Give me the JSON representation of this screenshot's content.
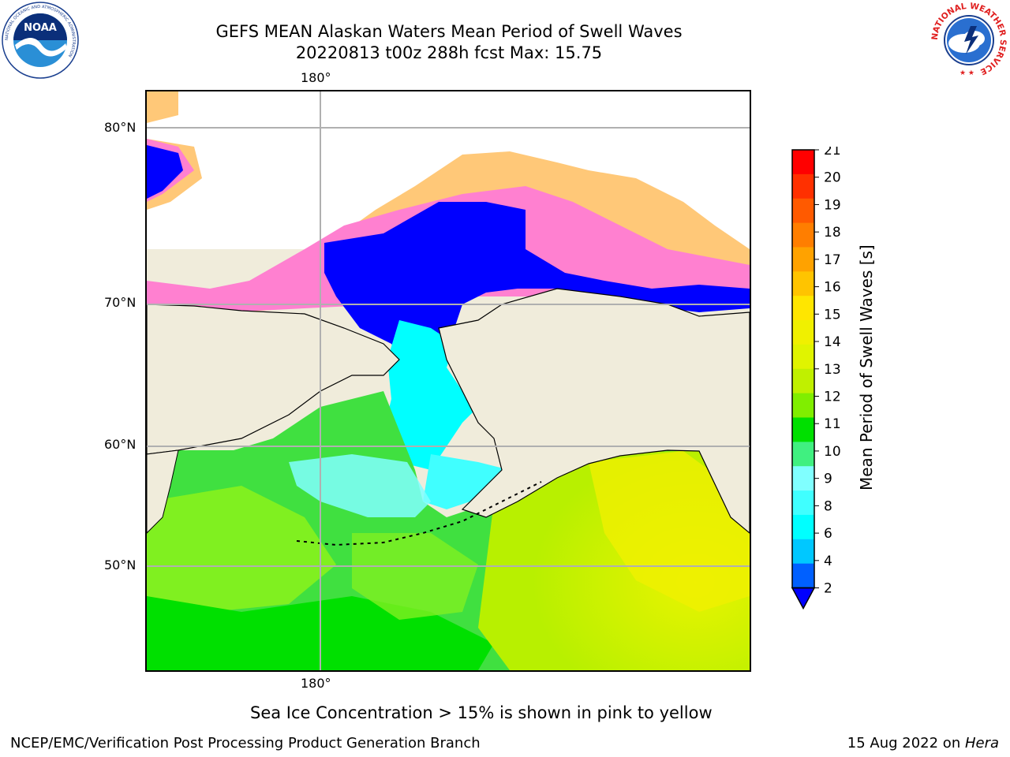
{
  "title": {
    "line1": "GEFS MEAN Alaskan Waters Mean Period of Swell Waves",
    "line2": "20220813 t00z 288h fcst   Max: 15.75"
  },
  "map": {
    "lat_labels": [
      "80°N",
      "70°N",
      "60°N",
      "50°N"
    ],
    "lon_label_top": "180°",
    "lon_label_bottom": "180°",
    "land_color": "#f0ecdb",
    "ice_colors": [
      "#ff00ff",
      "#ff80d0",
      "#ffb0b0",
      "#ffc878",
      "#ffe060"
    ],
    "ocean_colors": {
      "dark_green": "#00e000",
      "green": "#40e040",
      "light_green": "#80f020",
      "yellow_green": "#c0f000",
      "yellow": "#f0f000",
      "cyan": "#00ffff",
      "light_cyan": "#80ffff",
      "blue": "#0000ff",
      "mint": "#40f080"
    }
  },
  "colorbar": {
    "label": "Mean Period of Swell Waves [s]",
    "ticks": [
      "21",
      "20",
      "19",
      "18",
      "17",
      "16",
      "15",
      "14",
      "13",
      "12",
      "11",
      "10",
      "9",
      "8",
      "6",
      "4",
      "2"
    ],
    "colors": [
      "#ff0000",
      "#ff3000",
      "#ff5a00",
      "#ff7e00",
      "#ffa200",
      "#ffc400",
      "#ffe600",
      "#f0f000",
      "#e0f400",
      "#c0f000",
      "#80ee00",
      "#00e000",
      "#40f080",
      "#80ffff",
      "#40ffff",
      "#00ffff",
      "#00c8ff",
      "#0060ff"
    ],
    "extend_color": "#0000ff"
  },
  "caption": "Sea Ice Concentration > 15% is shown in pink to yellow",
  "footer": {
    "left": "NCEP/EMC/Verification Post Processing Product Generation Branch",
    "date": "15 Aug 2022 on ",
    "machine": "Hera"
  },
  "logos": {
    "noaa_text": "NOAA",
    "noaa_ring": "NATIONAL OCEANIC AND ATMOSPHERIC ADMINISTRATION",
    "nws_ring": "NATIONAL WEATHER SERVICE"
  }
}
